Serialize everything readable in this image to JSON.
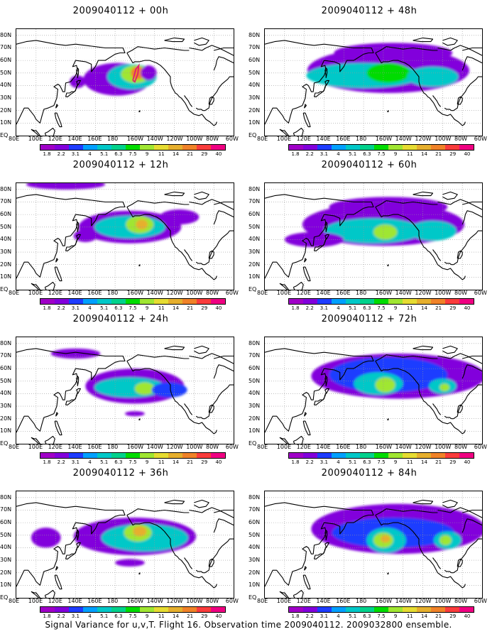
{
  "panels": [
    {
      "title": "2009040112 + 00h"
    },
    {
      "title": "2009040112 + 48h"
    },
    {
      "title": "2009040112 + 12h"
    },
    {
      "title": "2009040112 + 60h"
    },
    {
      "title": "2009040112 + 24h"
    },
    {
      "title": "2009040112 + 72h"
    },
    {
      "title": "2009040112 + 36h"
    },
    {
      "title": "2009040112 + 84h"
    }
  ],
  "lat_labels": [
    "80N",
    "70N",
    "60N",
    "50N",
    "40N",
    "30N",
    "20N",
    "10N",
    "EQ"
  ],
  "lon_labels": [
    "80E",
    "100E",
    "120E",
    "140E",
    "160E",
    "180",
    "160W",
    "140W",
    "120W",
    "100W",
    "80W",
    "60W"
  ],
  "colorbar": {
    "levels": [
      "1.8",
      "2.2",
      "3.1",
      "4",
      "5.1",
      "6.3",
      "7.5",
      "9",
      "11",
      "14",
      "21",
      "29",
      "40"
    ],
    "colors": [
      "#a000c8",
      "#8200dc",
      "#1e3cff",
      "#00a0ff",
      "#00c8c8",
      "#00d28c",
      "#00dc00",
      "#a0e632",
      "#e6dc32",
      "#e6af2d",
      "#f08228",
      "#fa3c3c",
      "#f00082"
    ]
  },
  "caption": "Signal Variance for u,v,T. Flight 16. Observation time 2009040112. 2009032800 ensemble."
}
